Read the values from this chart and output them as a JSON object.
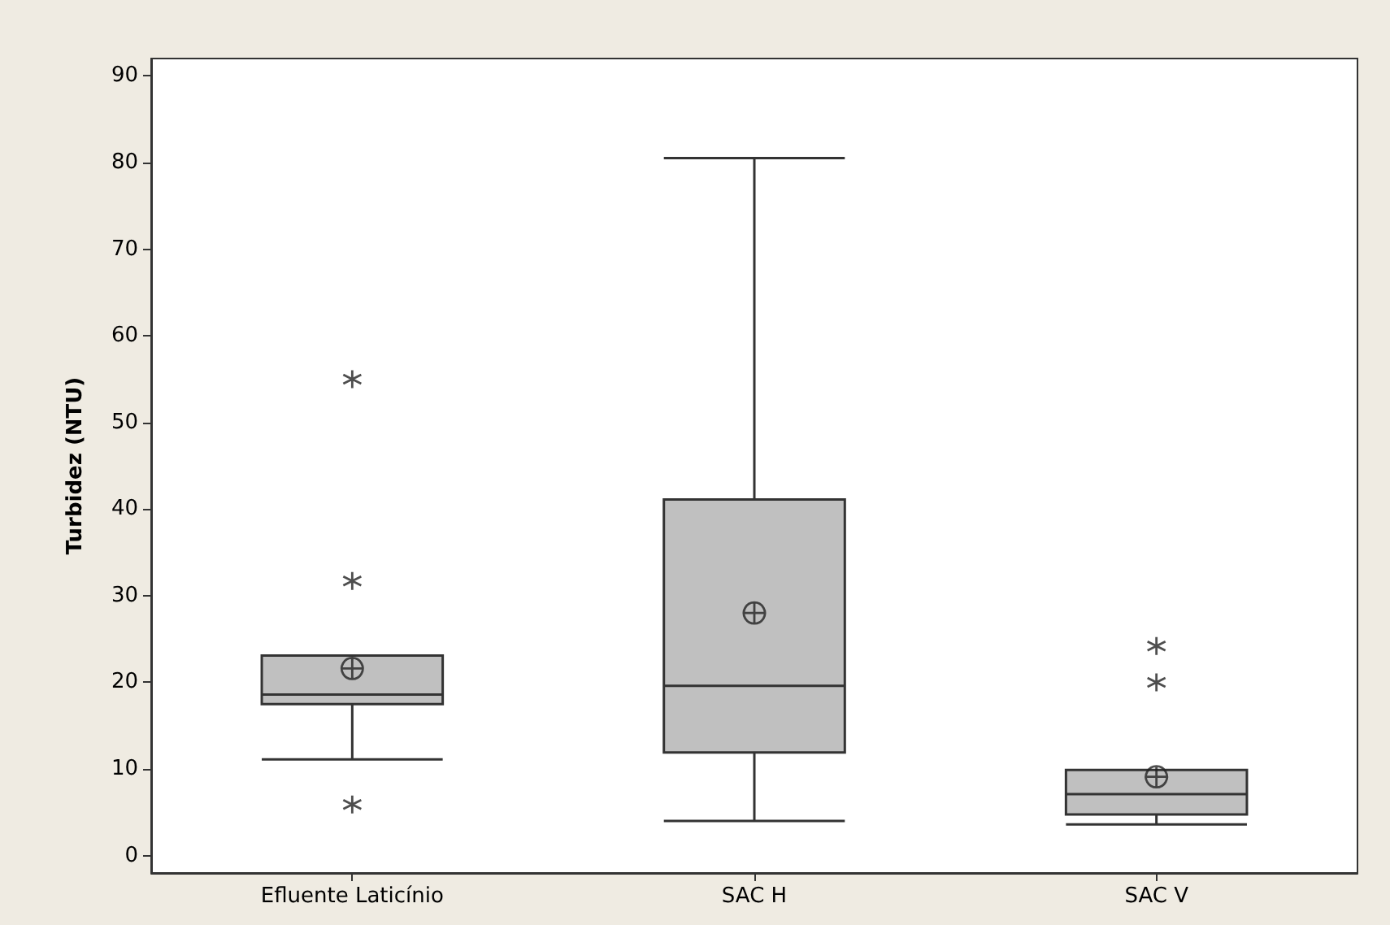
{
  "chart_data": {
    "type": "box",
    "ylabel": "Turbidez (NTU)",
    "categories": [
      "Efluente Laticínio",
      "SAC H",
      "SAC V"
    ],
    "color": "#c0c0c0",
    "boxes": [
      {
        "low": 11.1,
        "q1": 17.5,
        "median": 18.6,
        "q3": 23.1,
        "high": 23.1,
        "mean": 21.6,
        "outliers": [
          55,
          31.7,
          5.9
        ]
      },
      {
        "low": 4.0,
        "q1": 11.9,
        "median": 19.6,
        "q3": 41.1,
        "high": 80.5,
        "mean": 28
      },
      {
        "low": 3.6,
        "q1": 4.75,
        "median": 7.1,
        "q3": 9.9,
        "high": 9.9,
        "mean": 9.1,
        "outliers": [
          24.2,
          20.0
        ]
      }
    ],
    "ylim": [
      -2,
      92
    ],
    "yticks": [
      0,
      10,
      20,
      30,
      40,
      50,
      60,
      70,
      80,
      90
    ],
    "grid": false
  }
}
